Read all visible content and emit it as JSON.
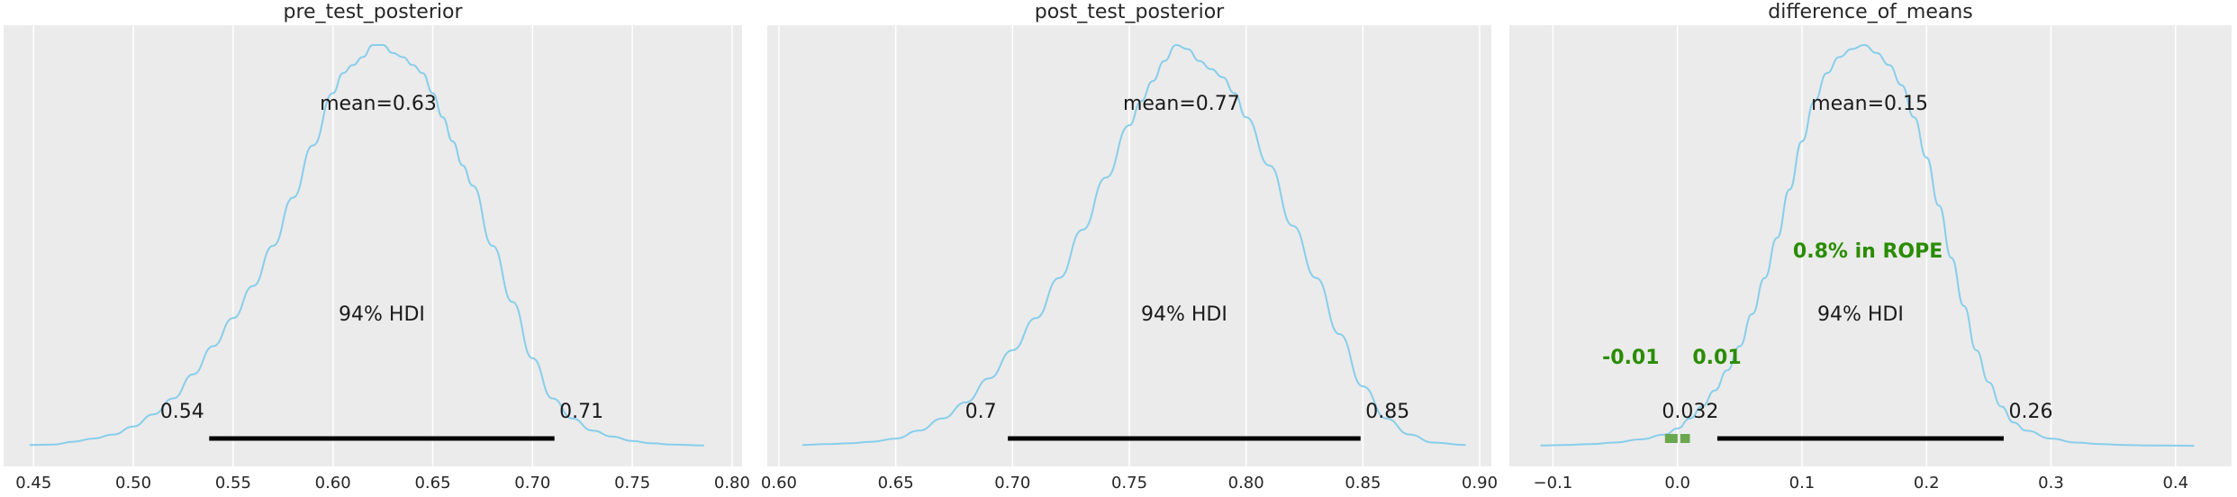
{
  "chart_data": [
    {
      "type": "area",
      "title": "pre_test_posterior",
      "xlim": [
        0.435,
        0.805
      ],
      "x_ticks": [
        0.45,
        0.5,
        0.55,
        0.6,
        0.65,
        0.7,
        0.75,
        0.8
      ],
      "x_tick_labels": [
        "0.45",
        "0.50",
        "0.55",
        "0.60",
        "0.65",
        "0.70",
        "0.75",
        "0.80"
      ],
      "grid": true,
      "line_color": "#87ceeb",
      "density": {
        "x": [
          0.448,
          0.46,
          0.47,
          0.48,
          0.49,
          0.5,
          0.51,
          0.52,
          0.53,
          0.54,
          0.55,
          0.56,
          0.57,
          0.58,
          0.59,
          0.6,
          0.605,
          0.61,
          0.615,
          0.62,
          0.625,
          0.63,
          0.635,
          0.64,
          0.645,
          0.65,
          0.655,
          0.66,
          0.665,
          0.67,
          0.68,
          0.69,
          0.7,
          0.71,
          0.72,
          0.73,
          0.74,
          0.75,
          0.76,
          0.77,
          0.786
        ],
        "y": [
          0.004,
          0.005,
          0.012,
          0.02,
          0.03,
          0.05,
          0.08,
          0.12,
          0.18,
          0.25,
          0.32,
          0.4,
          0.5,
          0.62,
          0.75,
          0.88,
          0.93,
          0.95,
          0.97,
          1.0,
          1.0,
          0.98,
          0.97,
          0.95,
          0.93,
          0.88,
          0.82,
          0.76,
          0.7,
          0.65,
          0.5,
          0.36,
          0.22,
          0.12,
          0.07,
          0.04,
          0.025,
          0.014,
          0.008,
          0.005,
          0.003
        ]
      },
      "mean_label": "mean=0.63",
      "hdi_label": "94% HDI",
      "hdi": [
        0.538,
        0.711
      ],
      "hdi_low_label": "0.54",
      "hdi_high_label": "0.71"
    },
    {
      "type": "area",
      "title": "post_test_posterior",
      "xlim": [
        0.595,
        0.905
      ],
      "x_ticks": [
        0.6,
        0.65,
        0.7,
        0.75,
        0.8,
        0.85,
        0.9
      ],
      "x_tick_labels": [
        "0.60",
        "0.65",
        "0.70",
        "0.75",
        "0.80",
        "0.85",
        "0.90"
      ],
      "grid": true,
      "line_color": "#87ceeb",
      "density": {
        "x": [
          0.61,
          0.62,
          0.63,
          0.64,
          0.65,
          0.66,
          0.67,
          0.68,
          0.69,
          0.7,
          0.71,
          0.72,
          0.73,
          0.74,
          0.75,
          0.755,
          0.76,
          0.765,
          0.77,
          0.775,
          0.78,
          0.785,
          0.79,
          0.795,
          0.8,
          0.81,
          0.82,
          0.83,
          0.84,
          0.85,
          0.86,
          0.87,
          0.88,
          0.894
        ],
        "y": [
          0.004,
          0.006,
          0.008,
          0.012,
          0.02,
          0.04,
          0.07,
          0.11,
          0.17,
          0.24,
          0.32,
          0.42,
          0.54,
          0.67,
          0.8,
          0.86,
          0.91,
          0.96,
          1.0,
          0.99,
          0.96,
          0.94,
          0.92,
          0.88,
          0.82,
          0.7,
          0.55,
          0.42,
          0.28,
          0.15,
          0.07,
          0.03,
          0.01,
          0.004
        ]
      },
      "mean_label": "mean=0.77",
      "hdi_label": "94% HDI",
      "hdi": [
        0.698,
        0.849
      ],
      "hdi_low_label": "0.7",
      "hdi_high_label": "0.85"
    },
    {
      "type": "area",
      "title": "difference_of_means",
      "xlim": [
        -0.135,
        0.445
      ],
      "x_ticks": [
        -0.1,
        0.0,
        0.1,
        0.2,
        0.3,
        0.4
      ],
      "x_tick_labels": [
        "−0.1",
        "0.0",
        "0.1",
        "0.2",
        "0.3",
        "0.4"
      ],
      "grid": true,
      "line_color": "#87ceeb",
      "density": {
        "x": [
          -0.11,
          -0.09,
          -0.07,
          -0.05,
          -0.03,
          -0.01,
          0.0,
          0.01,
          0.02,
          0.03,
          0.04,
          0.05,
          0.06,
          0.07,
          0.08,
          0.09,
          0.1,
          0.11,
          0.12,
          0.13,
          0.14,
          0.15,
          0.16,
          0.17,
          0.18,
          0.19,
          0.2,
          0.21,
          0.22,
          0.23,
          0.24,
          0.25,
          0.26,
          0.27,
          0.28,
          0.3,
          0.32,
          0.34,
          0.36,
          0.38,
          0.415
        ],
        "y": [
          0.003,
          0.004,
          0.006,
          0.01,
          0.018,
          0.03,
          0.045,
          0.07,
          0.1,
          0.14,
          0.19,
          0.25,
          0.33,
          0.42,
          0.52,
          0.64,
          0.76,
          0.86,
          0.93,
          0.97,
          0.99,
          1.0,
          0.98,
          0.95,
          0.9,
          0.82,
          0.72,
          0.6,
          0.47,
          0.35,
          0.24,
          0.16,
          0.1,
          0.06,
          0.04,
          0.02,
          0.01,
          0.006,
          0.004,
          0.003,
          0.002
        ]
      },
      "mean_label": "mean=0.15",
      "hdi_label": "94% HDI",
      "hdi": [
        0.032,
        0.262
      ],
      "hdi_low_label": "0.032",
      "hdi_high_label": "0.26",
      "rope": [
        -0.01,
        0.01
      ],
      "rope_low_label": "-0.01",
      "rope_high_label": "0.01",
      "rope_text": "0.8% in ROPE",
      "rope_color": "#2a8c00",
      "rope_marker_color": "#6aa84f"
    }
  ]
}
